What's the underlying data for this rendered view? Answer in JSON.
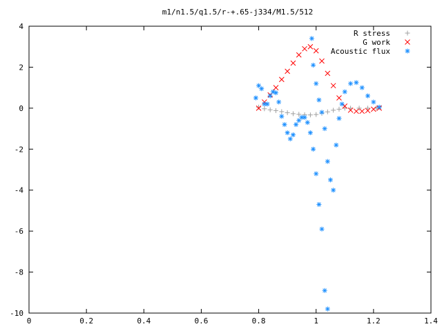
{
  "chart_data": {
    "type": "scatter",
    "title": "m1/n1.5/q1.5/r-+.65-j334/M1.5/512",
    "xlim": [
      0,
      1.4
    ],
    "ylim": [
      -10,
      4
    ],
    "x_ticks": [
      "0",
      "0.2",
      "0.4",
      "0.6",
      "0.8",
      "1",
      "1.2",
      "1.4"
    ],
    "y_ticks": [
      "4",
      "2",
      "0",
      "-2",
      "-4",
      "-6",
      "-8",
      "-10"
    ],
    "legend_position": "top-right",
    "series": [
      {
        "name": "R stress",
        "marker": "plus",
        "color": "#a0a0a0",
        "points": [
          [
            0.8,
            0.05
          ],
          [
            0.82,
            -0.03
          ],
          [
            0.84,
            -0.08
          ],
          [
            0.86,
            -0.12
          ],
          [
            0.88,
            -0.17
          ],
          [
            0.9,
            -0.22
          ],
          [
            0.92,
            -0.27
          ],
          [
            0.94,
            -0.3
          ],
          [
            0.96,
            -0.32
          ],
          [
            0.98,
            -0.33
          ],
          [
            1.0,
            -0.31
          ],
          [
            1.02,
            -0.25
          ],
          [
            1.04,
            -0.18
          ],
          [
            1.06,
            -0.1
          ],
          [
            1.08,
            -0.05
          ],
          [
            1.1,
            0.0
          ],
          [
            1.12,
            0.0
          ],
          [
            1.15,
            0.0
          ],
          [
            1.18,
            0.0
          ],
          [
            1.21,
            0.0
          ]
        ]
      },
      {
        "name": "G work",
        "marker": "cross",
        "color": "#ff0000",
        "points": [
          [
            0.8,
            0.0
          ],
          [
            0.82,
            0.3
          ],
          [
            0.84,
            0.65
          ],
          [
            0.86,
            1.0
          ],
          [
            0.88,
            1.4
          ],
          [
            0.9,
            1.8
          ],
          [
            0.92,
            2.2
          ],
          [
            0.94,
            2.6
          ],
          [
            0.96,
            2.9
          ],
          [
            0.98,
            3.0
          ],
          [
            1.0,
            2.8
          ],
          [
            1.02,
            2.3
          ],
          [
            1.04,
            1.7
          ],
          [
            1.06,
            1.1
          ],
          [
            1.08,
            0.5
          ],
          [
            1.1,
            0.1
          ],
          [
            1.12,
            -0.1
          ],
          [
            1.14,
            -0.15
          ],
          [
            1.16,
            -0.15
          ],
          [
            1.18,
            -0.12
          ],
          [
            1.2,
            -0.05
          ],
          [
            1.22,
            0.0
          ]
        ]
      },
      {
        "name": "Acoustic flux",
        "marker": "star",
        "color": "#1e90ff",
        "points": [
          [
            0.79,
            0.5
          ],
          [
            0.8,
            1.1
          ],
          [
            0.81,
            0.95
          ],
          [
            0.82,
            0.2
          ],
          [
            0.83,
            0.2
          ],
          [
            0.84,
            0.6
          ],
          [
            0.85,
            0.8
          ],
          [
            0.86,
            0.75
          ],
          [
            0.87,
            0.3
          ],
          [
            0.88,
            -0.4
          ],
          [
            0.89,
            -0.8
          ],
          [
            0.9,
            -1.2
          ],
          [
            0.91,
            -1.5
          ],
          [
            0.92,
            -1.3
          ],
          [
            0.93,
            -0.8
          ],
          [
            0.94,
            -0.6
          ],
          [
            0.95,
            -0.45
          ],
          [
            0.96,
            -0.45
          ],
          [
            0.97,
            -0.7
          ],
          [
            0.98,
            -1.2
          ],
          [
            0.99,
            -2.0
          ],
          [
            1.0,
            -3.2
          ],
          [
            1.01,
            -4.7
          ],
          [
            1.02,
            -5.9
          ],
          [
            1.03,
            -8.9
          ],
          [
            1.04,
            -9.8
          ],
          [
            0.985,
            3.4
          ],
          [
            0.99,
            2.1
          ],
          [
            1.0,
            1.2
          ],
          [
            1.01,
            0.4
          ],
          [
            1.02,
            -0.2
          ],
          [
            1.03,
            -1.0
          ],
          [
            1.04,
            -2.6
          ],
          [
            1.05,
            -3.5
          ],
          [
            1.06,
            -4.0
          ],
          [
            1.07,
            -1.8
          ],
          [
            1.08,
            -0.5
          ],
          [
            1.09,
            0.2
          ],
          [
            1.1,
            0.8
          ],
          [
            1.12,
            1.2
          ],
          [
            1.14,
            1.25
          ],
          [
            1.16,
            1.0
          ],
          [
            1.18,
            0.6
          ],
          [
            1.2,
            0.3
          ],
          [
            1.22,
            0.05
          ]
        ]
      }
    ]
  }
}
